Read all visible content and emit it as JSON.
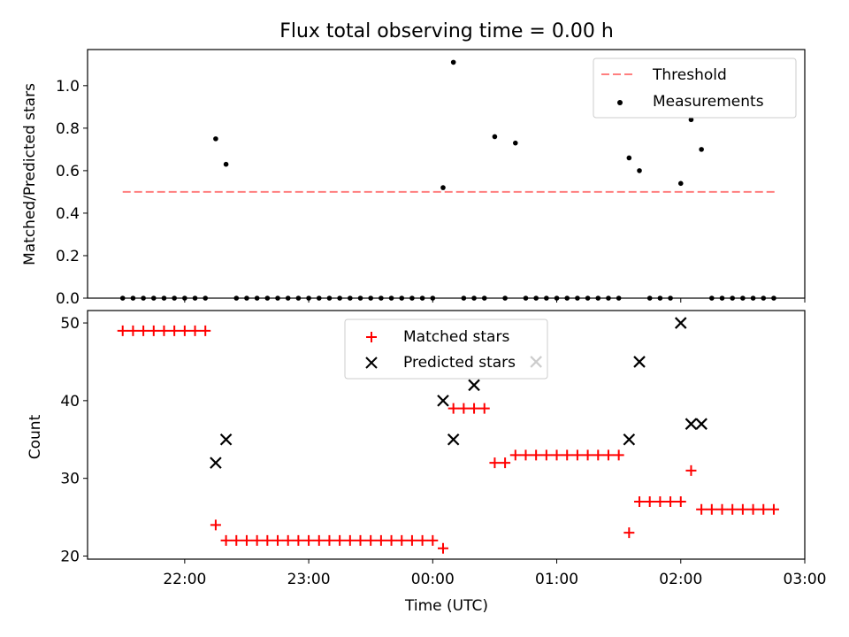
{
  "title": "Flux total observing time = 0.00 h",
  "colors": {
    "threshold": "#ff7f7f",
    "measurement": "#000000",
    "matched": "#ff0000",
    "predicted": "#000000"
  },
  "chart_data": [
    {
      "type": "scatter",
      "title": "Flux total observing time = 0.00 h",
      "xlabel": "",
      "ylabel": "Matched/Predicted stars",
      "ylim": [
        0,
        1.17
      ],
      "yticks": [
        0.0,
        0.2,
        0.4,
        0.6,
        0.8,
        1.0
      ],
      "ytick_labels": [
        "0.0",
        "0.2",
        "0.4",
        "0.6",
        "0.8",
        "1.0"
      ],
      "legend_position": "upper right",
      "threshold": {
        "name": "Threshold",
        "value": 0.5,
        "x_range": [
          "21:30",
          "02:46"
        ]
      },
      "series": [
        {
          "name": "Measurements",
          "x": [
            "21:30",
            "21:35",
            "21:40",
            "21:45",
            "21:50",
            "21:55",
            "22:00",
            "22:05",
            "22:10",
            "22:15",
            "22:20",
            "22:25",
            "22:30",
            "22:35",
            "22:40",
            "22:45",
            "22:50",
            "22:55",
            "23:00",
            "23:05",
            "23:10",
            "23:15",
            "23:20",
            "23:25",
            "23:30",
            "23:35",
            "23:40",
            "23:45",
            "23:50",
            "23:55",
            "00:00",
            "00:05",
            "00:10",
            "00:15",
            "00:20",
            "00:25",
            "00:30",
            "00:35",
            "00:40",
            "00:45",
            "00:50",
            "00:55",
            "01:00",
            "01:05",
            "01:10",
            "01:15",
            "01:20",
            "01:25",
            "01:30",
            "01:35",
            "01:40",
            "01:45",
            "01:50",
            "01:55",
            "02:00",
            "02:05",
            "02:10",
            "02:15",
            "02:20",
            "02:25",
            "02:30",
            "02:35",
            "02:40",
            "02:45"
          ],
          "y": [
            0,
            0,
            0,
            0,
            0,
            0,
            0,
            0,
            0,
            0.75,
            0.63,
            0,
            0,
            0,
            0,
            0,
            0,
            0,
            0,
            0,
            0,
            0,
            0,
            0,
            0,
            0,
            0,
            0,
            0,
            0,
            0,
            0.52,
            1.11,
            0,
            0,
            0,
            0.76,
            0,
            0.73,
            0,
            0,
            0,
            0,
            0,
            0,
            0,
            0,
            0,
            0,
            0.66,
            0.6,
            0,
            0,
            0,
            0.54,
            0.84,
            0.7,
            0,
            0,
            0,
            0,
            0,
            0,
            0
          ]
        }
      ]
    },
    {
      "type": "scatter",
      "xlabel": "Time (UTC)",
      "ylabel": "Count",
      "ylim": [
        19.6,
        51.6
      ],
      "yticks": [
        20,
        30,
        40,
        50
      ],
      "ytick_labels": [
        "20",
        "30",
        "40",
        "50"
      ],
      "xlim": [
        "21:13",
        "03:00"
      ],
      "xticks": [
        "22:00",
        "23:00",
        "00:00",
        "01:00",
        "02:00",
        "03:00"
      ],
      "legend_position": "upper center",
      "series": [
        {
          "name": "Matched stars",
          "x": [
            "21:30",
            "21:35",
            "21:40",
            "21:45",
            "21:50",
            "21:55",
            "22:00",
            "22:05",
            "22:10",
            "22:15",
            "22:20",
            "22:25",
            "22:30",
            "22:35",
            "22:40",
            "22:45",
            "22:50",
            "22:55",
            "23:00",
            "23:05",
            "23:10",
            "23:15",
            "23:20",
            "23:25",
            "23:30",
            "23:35",
            "23:40",
            "23:45",
            "23:50",
            "23:55",
            "00:00",
            "00:05",
            "00:10",
            "00:15",
            "00:20",
            "00:25",
            "00:30",
            "00:35",
            "00:40",
            "00:45",
            "00:50",
            "00:55",
            "01:00",
            "01:05",
            "01:10",
            "01:15",
            "01:20",
            "01:25",
            "01:30",
            "01:35",
            "01:40",
            "01:45",
            "01:50",
            "01:55",
            "02:00",
            "02:05",
            "02:10",
            "02:15",
            "02:20",
            "02:25",
            "02:30",
            "02:35",
            "02:40",
            "02:45"
          ],
          "y": [
            49,
            49,
            49,
            49,
            49,
            49,
            49,
            49,
            49,
            24,
            22,
            22,
            22,
            22,
            22,
            22,
            22,
            22,
            22,
            22,
            22,
            22,
            22,
            22,
            22,
            22,
            22,
            22,
            22,
            22,
            22,
            21,
            39,
            39,
            39,
            39,
            32,
            32,
            33,
            33,
            33,
            33,
            33,
            33,
            33,
            33,
            33,
            33,
            33,
            23,
            27,
            27,
            27,
            27,
            27,
            31,
            26,
            26,
            26,
            26,
            26,
            26,
            26,
            26
          ]
        },
        {
          "name": "Predicted stars",
          "x": [
            "22:15",
            "22:20",
            "00:05",
            "00:10",
            "00:20",
            "00:50",
            "01:35",
            "01:40",
            "02:00",
            "02:05",
            "02:10"
          ],
          "y": [
            32,
            35,
            40,
            35,
            42,
            45,
            35,
            45,
            50,
            37,
            37
          ]
        }
      ]
    }
  ]
}
